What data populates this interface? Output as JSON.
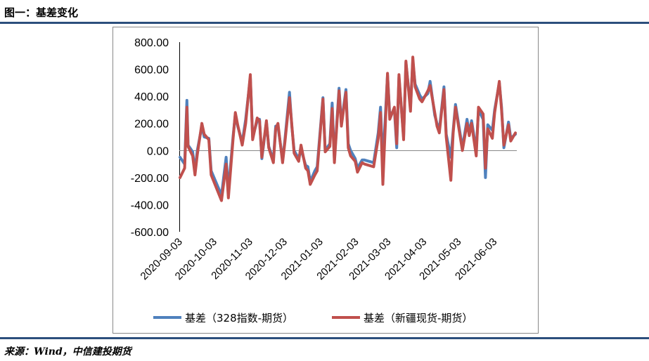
{
  "header": {
    "title": "图一：基差变化"
  },
  "footer": {
    "source": "来源：Wind，中信建投期货"
  },
  "colors": {
    "series1": "#4f81bd",
    "series2": "#c0504d",
    "rule": "#2c4f7c"
  },
  "chart_data": {
    "type": "line",
    "title": "",
    "xlabel": "",
    "ylabel": "",
    "ylim": [
      -600,
      800
    ],
    "yticks": [
      "800.00",
      "600.00",
      "400.00",
      "200.00",
      "0.00",
      "-200.00",
      "-400.00",
      "-600.00"
    ],
    "xticks": [
      "2020-09-03",
      "2020-10-03",
      "2020-11-03",
      "2020-12-03",
      "2021-01-03",
      "2021-02-03",
      "2021-03-03",
      "2021-04-03",
      "2021-05-03",
      "2021-06-03"
    ],
    "grid": false,
    "legend": "bottom",
    "x": [
      "2020-09-03",
      "2020-09-07",
      "2020-09-09",
      "2020-09-10",
      "2020-09-14",
      "2020-09-16",
      "2020-09-18",
      "2020-09-22",
      "2020-09-24",
      "2020-09-28",
      "2020-09-30",
      "2020-10-09",
      "2020-10-13",
      "2020-10-15",
      "2020-10-19",
      "2020-10-21",
      "2020-10-23",
      "2020-10-27",
      "2020-10-30",
      "2020-11-03",
      "2020-11-05",
      "2020-11-09",
      "2020-11-11",
      "2020-11-13",
      "2020-11-17",
      "2020-11-19",
      "2020-11-23",
      "2020-11-25",
      "2020-11-27",
      "2020-12-01",
      "2020-12-03",
      "2020-12-07",
      "2020-12-09",
      "2020-12-11",
      "2020-12-15",
      "2020-12-17",
      "2020-12-21",
      "2020-12-23",
      "2020-12-25",
      "2020-12-29",
      "2020-12-31",
      "2021-01-05",
      "2021-01-07",
      "2021-01-11",
      "2021-01-13",
      "2021-01-15",
      "2021-01-19",
      "2021-01-21",
      "2021-01-25",
      "2021-01-27",
      "2021-01-29",
      "2021-02-02",
      "2021-02-04",
      "2021-02-08",
      "2021-02-10",
      "2021-02-18",
      "2021-02-22",
      "2021-02-24",
      "2021-02-26",
      "2021-03-02",
      "2021-03-04",
      "2021-03-08",
      "2021-03-10",
      "2021-03-12",
      "2021-03-16",
      "2021-03-18",
      "2021-03-22",
      "2021-03-24",
      "2021-03-26",
      "2021-03-30",
      "2021-04-01",
      "2021-04-06",
      "2021-04-08",
      "2021-04-12",
      "2021-04-14",
      "2021-04-16",
      "2021-04-20",
      "2021-04-22",
      "2021-04-26",
      "2021-04-28",
      "2021-04-30",
      "2021-05-06",
      "2021-05-10",
      "2021-05-12",
      "2021-05-14",
      "2021-05-18",
      "2021-05-20",
      "2021-05-24",
      "2021-05-26",
      "2021-05-28",
      "2021-06-01",
      "2021-06-03",
      "2021-06-07",
      "2021-06-09",
      "2021-06-11",
      "2021-06-15",
      "2021-06-17",
      "2021-06-21"
    ],
    "series": [
      {
        "name": "基差（328指数-期货）",
        "color": "#4f81bd",
        "values": [
          -50,
          -100,
          370,
          40,
          -10,
          -150,
          0,
          180,
          100,
          90,
          -150,
          -330,
          -50,
          -300,
          100,
          270,
          180,
          60,
          230,
          540,
          100,
          220,
          230,
          -60,
          210,
          30,
          -70,
          180,
          180,
          -70,
          80,
          430,
          180,
          0,
          -60,
          10,
          -110,
          -120,
          -230,
          -150,
          -120,
          390,
          0,
          50,
          350,
          -70,
          460,
          200,
          450,
          50,
          0,
          -60,
          -130,
          -70,
          -70,
          -90,
          130,
          320,
          -100,
          560,
          260,
          300,
          20,
          540,
          100,
          650,
          320,
          660,
          490,
          410,
          380,
          420,
          510,
          260,
          200,
          150,
          470,
          120,
          -50,
          150,
          340,
          20,
          230,
          130,
          220,
          0,
          300,
          230,
          -200,
          190,
          150,
          300,
          500,
          320,
          20,
          210,
          90,
          120
        ]
      },
      {
        "name": "基差（新疆现货-期货）",
        "color": "#c0504d",
        "values": [
          -200,
          -130,
          320,
          30,
          -40,
          -180,
          -30,
          200,
          120,
          80,
          -180,
          -370,
          -100,
          -350,
          80,
          280,
          190,
          40,
          200,
          560,
          80,
          240,
          220,
          -50,
          220,
          20,
          -90,
          160,
          200,
          -90,
          60,
          390,
          190,
          -20,
          -80,
          40,
          -130,
          -150,
          -250,
          -180,
          -150,
          380,
          -10,
          30,
          310,
          -90,
          440,
          180,
          430,
          20,
          -40,
          -80,
          -160,
          -90,
          -100,
          -120,
          90,
          280,
          -250,
          570,
          230,
          320,
          50,
          560,
          80,
          660,
          290,
          690,
          470,
          380,
          360,
          440,
          480,
          280,
          180,
          130,
          450,
          100,
          -220,
          130,
          320,
          0,
          200,
          110,
          200,
          -40,
          320,
          270,
          -130,
          160,
          90,
          280,
          510,
          300,
          40,
          190,
          70,
          130
        ]
      }
    ]
  }
}
